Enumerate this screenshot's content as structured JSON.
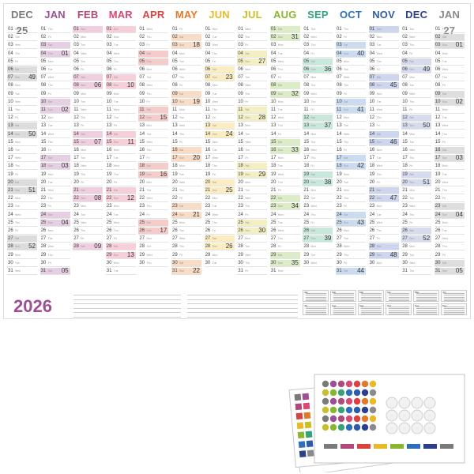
{
  "year": "2026",
  "colors": {
    "DEC 25": "#7a7a7a",
    "JAN": "#9c4f96",
    "FEB": "#b04a7a",
    "MAR": "#d64a73",
    "APR": "#d8433f",
    "MAY": "#e07a2b",
    "JUN": "#e9b92a",
    "JUL": "#c9bf2a",
    "AUG": "#8ab52f",
    "SEP": "#35a277",
    "OCT": "#2e6fbb",
    "NOV": "#2f5ca8",
    "DEC": "#2b3f8c",
    "JAN 27": "#8a8a8a"
  },
  "day_abbr": [
    "Mon",
    "Tue",
    "Wed",
    "Thu",
    "Fri",
    "Sat",
    "Sun"
  ],
  "months": [
    {
      "label": "DEC 25",
      "color": "#7a7a7a",
      "tint": "#dcdcdc",
      "days": 31,
      "start": 0,
      "weeks": [
        {
          "day": 7,
          "wk": "49"
        },
        {
          "day": 14,
          "wk": "50"
        },
        {
          "day": 21,
          "wk": "51"
        },
        {
          "day": 28,
          "wk": "52"
        }
      ]
    },
    {
      "label": "JAN",
      "color": "#9c4f96",
      "tint": "#e6cfe3",
      "days": 31,
      "start": 3,
      "weeks": [
        {
          "day": 4,
          "wk": "01"
        },
        {
          "day": 11,
          "wk": "02"
        },
        {
          "day": 18,
          "wk": "03"
        },
        {
          "day": 25,
          "wk": "04"
        },
        {
          "day": 31,
          "wk": "05"
        }
      ]
    },
    {
      "label": "FEB",
      "color": "#b04a7a",
      "tint": "#efcfdf",
      "days": 28,
      "start": 6,
      "weeks": [
        {
          "day": 8,
          "wk": "06"
        },
        {
          "day": 15,
          "wk": "07"
        },
        {
          "day": 22,
          "wk": "08"
        },
        {
          "day": 28,
          "wk": "09"
        }
      ]
    },
    {
      "label": "MAR",
      "color": "#d64a73",
      "tint": "#f6cfd8",
      "days": 31,
      "start": 6,
      "weeks": [
        {
          "day": 8,
          "wk": "10"
        },
        {
          "day": 15,
          "wk": "11"
        },
        {
          "day": 22,
          "wk": "12"
        },
        {
          "day": 29,
          "wk": "13"
        }
      ]
    },
    {
      "label": "APR",
      "color": "#d8433f",
      "tint": "#f6cccb",
      "days": 30,
      "start": 2,
      "weeks": [
        {
          "day": 12,
          "wk": "15"
        },
        {
          "day": 19,
          "wk": "16"
        },
        {
          "day": 26,
          "wk": "17"
        }
      ]
    },
    {
      "label": "MAY",
      "color": "#e07a2b",
      "tint": "#f8dcc5",
      "days": 31,
      "start": 4,
      "weeks": [
        {
          "day": 3,
          "wk": "18"
        },
        {
          "day": 10,
          "wk": "19"
        },
        {
          "day": 17,
          "wk": "20"
        },
        {
          "day": 24,
          "wk": "21"
        },
        {
          "day": 31,
          "wk": "22"
        }
      ]
    },
    {
      "label": "JUN",
      "color": "#e9b92a",
      "tint": "#fbedc1",
      "days": 30,
      "start": 0,
      "weeks": [
        {
          "day": 7,
          "wk": "23"
        },
        {
          "day": 14,
          "wk": "24"
        },
        {
          "day": 21,
          "wk": "25"
        },
        {
          "day": 28,
          "wk": "26"
        }
      ]
    },
    {
      "label": "JUL",
      "color": "#c9bf2a",
      "tint": "#f3efc3",
      "days": 31,
      "start": 2,
      "weeks": [
        {
          "day": 5,
          "wk": "27"
        },
        {
          "day": 12,
          "wk": "28"
        },
        {
          "day": 19,
          "wk": "29"
        },
        {
          "day": 26,
          "wk": "30"
        }
      ]
    },
    {
      "label": "AUG",
      "color": "#8ab52f",
      "tint": "#dcecc6",
      "days": 31,
      "start": 5,
      "weeks": [
        {
          "day": 2,
          "wk": "31"
        },
        {
          "day": 9,
          "wk": "32"
        },
        {
          "day": 16,
          "wk": "33"
        },
        {
          "day": 23,
          "wk": "34"
        },
        {
          "day": 30,
          "wk": "35"
        }
      ]
    },
    {
      "label": "SEP",
      "color": "#35a277",
      "tint": "#c9e8dc",
      "days": 30,
      "start": 1,
      "weeks": [
        {
          "day": 6,
          "wk": "36"
        },
        {
          "day": 13,
          "wk": "37"
        },
        {
          "day": 20,
          "wk": "38"
        },
        {
          "day": 27,
          "wk": "39"
        }
      ]
    },
    {
      "label": "OCT",
      "color": "#2e6fbb",
      "tint": "#cbdcf1",
      "days": 31,
      "start": 3,
      "weeks": [
        {
          "day": 4,
          "wk": "40"
        },
        {
          "day": 11,
          "wk": "41"
        },
        {
          "day": 18,
          "wk": "42"
        },
        {
          "day": 25,
          "wk": "43"
        },
        {
          "day": 31,
          "wk": "44"
        }
      ]
    },
    {
      "label": "NOV",
      "color": "#2f5ca8",
      "tint": "#cdd6ee",
      "days": 30,
      "start": 6,
      "weeks": [
        {
          "day": 8,
          "wk": "45"
        },
        {
          "day": 15,
          "wk": "46"
        },
        {
          "day": 22,
          "wk": "47"
        },
        {
          "day": 29,
          "wk": "48"
        }
      ]
    },
    {
      "label": "DEC",
      "color": "#2b3f8c",
      "tint": "#d6dbee",
      "days": 31,
      "start": 1,
      "weeks": [
        {
          "day": 6,
          "wk": "49"
        },
        {
          "day": 13,
          "wk": "50"
        },
        {
          "day": 20,
          "wk": "51"
        },
        {
          "day": 27,
          "wk": "52"
        }
      ]
    },
    {
      "label": "JAN 27",
      "color": "#8a8a8a",
      "tint": "#dedede",
      "days": 31,
      "start": 4,
      "weeks": [
        {
          "day": 3,
          "wk": "01"
        },
        {
          "day": 10,
          "wk": "02"
        },
        {
          "day": 17,
          "wk": "03"
        },
        {
          "day": 24,
          "wk": "04"
        },
        {
          "day": 31,
          "wk": "05"
        }
      ]
    }
  ],
  "mini_labels": [
    "Jan",
    "Feb",
    "Mar",
    "Apr",
    "May",
    "Jun",
    "Jul",
    "Aug",
    "Sep",
    "Oct",
    "Nov",
    "Dec"
  ]
}
